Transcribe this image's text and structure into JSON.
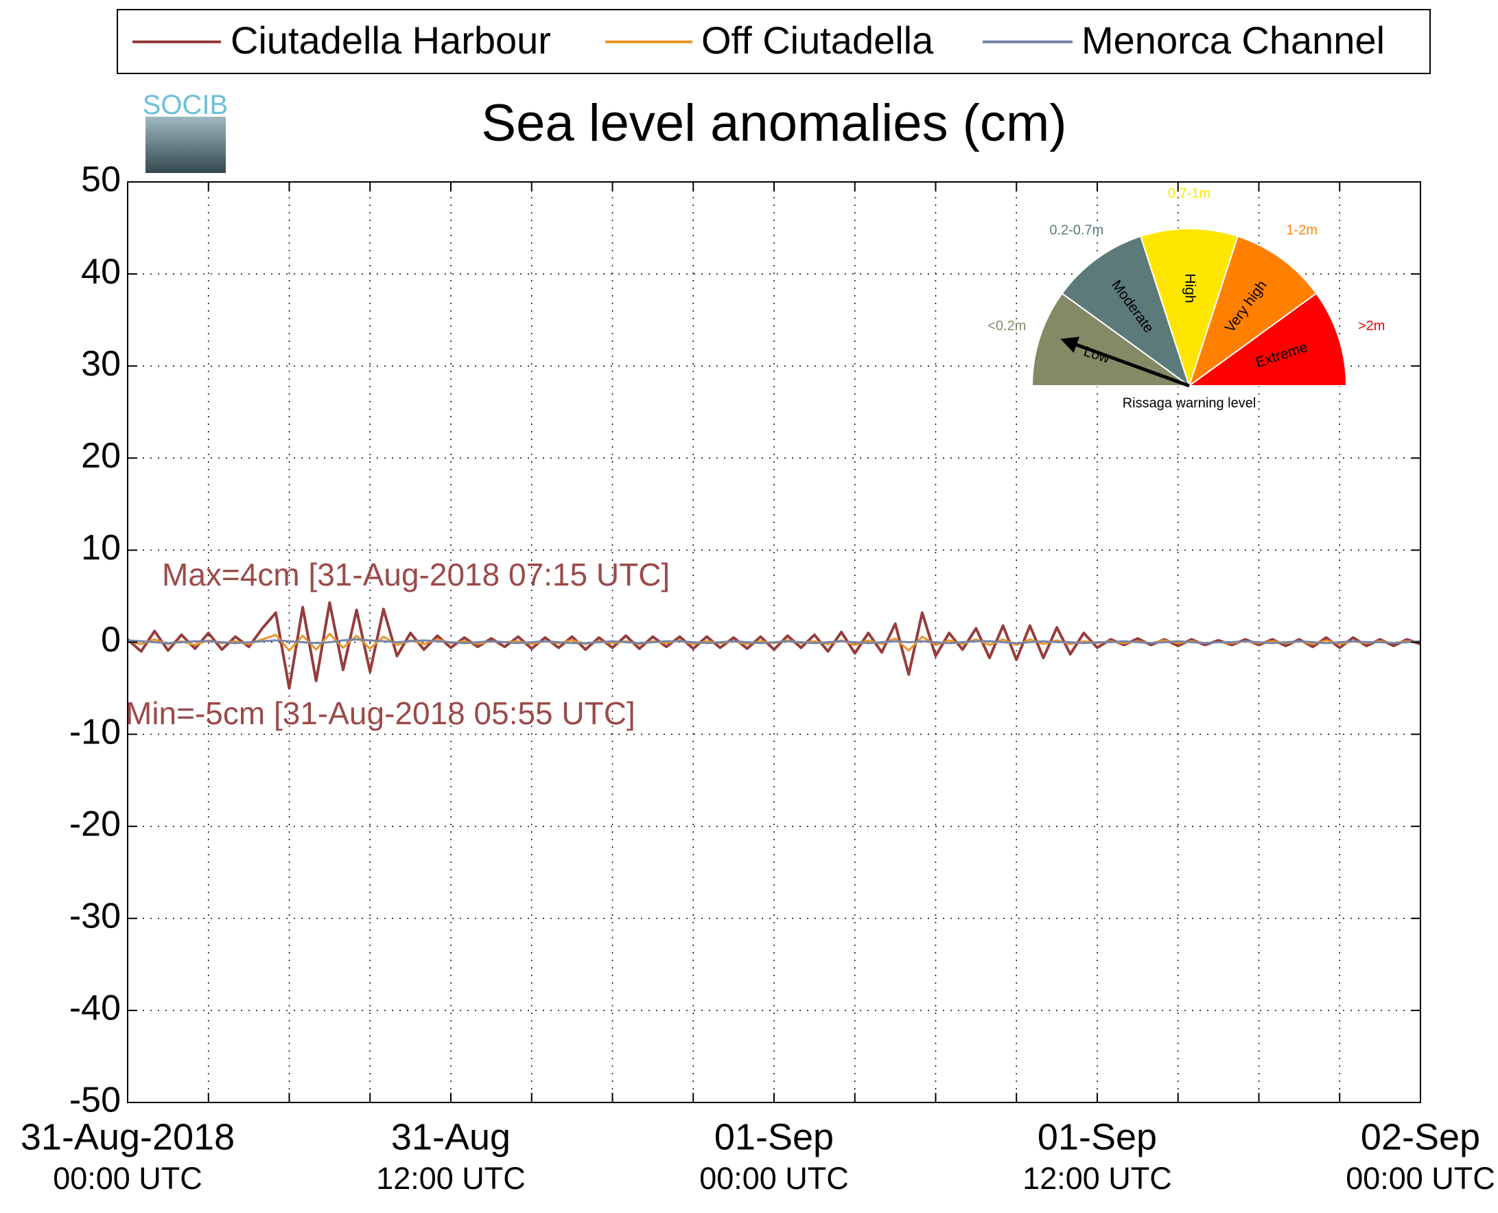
{
  "chart_data": {
    "type": "line",
    "title": "Sea level anomalies (cm)",
    "x": [
      0,
      0.5,
      1,
      1.5,
      2,
      2.5,
      3,
      3.5,
      4,
      4.5,
      5,
      5.5,
      6,
      6.5,
      7,
      7.5,
      8,
      8.5,
      9,
      9.5,
      10,
      10.5,
      11,
      11.5,
      12,
      12.5,
      13,
      13.5,
      14,
      14.5,
      15,
      15.5,
      16,
      16.5,
      17,
      17.5,
      18,
      18.5,
      19,
      19.5,
      20,
      20.5,
      21,
      21.5,
      22,
      22.5,
      23,
      23.5,
      24,
      24.5,
      25,
      25.5,
      26,
      26.5,
      27,
      27.5,
      28,
      28.5,
      29,
      29.5,
      30,
      30.5,
      31,
      31.5,
      32,
      32.5,
      33,
      33.5,
      34,
      34.5,
      35,
      35.5,
      36,
      36.5,
      37,
      37.5,
      38,
      38.5,
      39,
      39.5,
      40,
      40.5,
      41,
      41.5,
      42,
      42.5,
      43,
      43.5,
      44,
      44.5,
      45,
      45.5,
      46,
      46.5,
      47,
      47.5,
      48
    ],
    "series": [
      {
        "name": "Ciutadella Harbour",
        "color": "#963c3c",
        "values": [
          0.3,
          -1.0,
          1.2,
          -0.9,
          0.8,
          -0.7,
          1.0,
          -0.8,
          0.6,
          -0.5,
          1.5,
          3.2,
          -5.0,
          3.8,
          -4.2,
          4.3,
          -3.0,
          3.5,
          -3.2,
          3.6,
          -1.5,
          1.0,
          -0.8,
          0.7,
          -0.6,
          0.5,
          -0.5,
          0.4,
          -0.5,
          0.6,
          -0.7,
          0.5,
          -0.6,
          0.6,
          -0.8,
          0.5,
          -0.6,
          0.7,
          -0.7,
          0.6,
          -0.5,
          0.6,
          -0.7,
          0.6,
          -0.6,
          0.5,
          -0.7,
          0.6,
          -0.8,
          0.7,
          -0.6,
          0.8,
          -1.0,
          1.1,
          -1.2,
          1.0,
          -1.1,
          2.0,
          -3.5,
          3.2,
          -1.5,
          1.0,
          -0.8,
          1.5,
          -1.7,
          1.8,
          -1.9,
          1.8,
          -1.7,
          1.6,
          -1.3,
          1.0,
          -0.6,
          0.3,
          -0.3,
          0.4,
          -0.3,
          0.3,
          -0.4,
          0.3,
          -0.3,
          0.2,
          -0.3,
          0.3,
          -0.3,
          0.3,
          -0.4,
          0.3,
          -0.5,
          0.5,
          -0.6,
          0.5,
          -0.4,
          0.3,
          -0.4,
          0.3,
          -0.2
        ]
      },
      {
        "name": "Off Ciutadella",
        "color": "#e8962a",
        "values": [
          0.1,
          -0.2,
          0.3,
          -0.2,
          0.1,
          -0.3,
          0.2,
          -0.1,
          0.1,
          -0.2,
          0.3,
          0.8,
          -0.9,
          0.7,
          -0.8,
          0.9,
          -0.6,
          0.7,
          -0.7,
          0.6,
          -0.3,
          0.2,
          -0.2,
          0.3,
          -0.1,
          0.1,
          -0.2,
          0.1,
          0.0,
          0.1,
          -0.2,
          0.1,
          -0.1,
          0.2,
          -0.2,
          0.1,
          -0.1,
          0.1,
          -0.2,
          0.1,
          -0.1,
          0.2,
          -0.2,
          0.1,
          -0.1,
          0.1,
          -0.2,
          0.1,
          -0.1,
          0.2,
          -0.1,
          0.1,
          -0.2,
          0.2,
          -0.3,
          0.2,
          -0.2,
          0.4,
          -0.9,
          0.6,
          -0.3,
          0.2,
          -0.2,
          0.3,
          -0.3,
          0.3,
          -0.3,
          0.3,
          -0.2,
          0.2,
          -0.2,
          0.1,
          -0.1,
          0.1,
          -0.1,
          0.1,
          -0.1,
          0.2,
          -0.1,
          0.1,
          -0.1,
          0.0,
          -0.1,
          0.1,
          -0.1,
          0.1,
          -0.1,
          0.1,
          -0.2,
          0.2,
          -0.2,
          0.1,
          -0.1,
          0.1,
          -0.1,
          0.1,
          0.0
        ]
      },
      {
        "name": "Menorca Channel",
        "color": "#7784a8",
        "values": [
          0.2,
          0.1,
          0.0,
          -0.1,
          0.0,
          0.1,
          0.1,
          0.0,
          -0.1,
          0.0,
          0.1,
          0.2,
          0.1,
          0.0,
          -0.1,
          0.0,
          0.2,
          0.3,
          0.2,
          0.1,
          0.0,
          0.1,
          0.2,
          0.1,
          0.0,
          -0.1,
          0.0,
          0.1,
          0.0,
          -0.1,
          0.0,
          0.1,
          0.0,
          -0.1,
          -0.1,
          0.0,
          0.1,
          0.0,
          -0.1,
          0.0,
          0.1,
          0.1,
          0.0,
          -0.1,
          0.0,
          0.1,
          0.0,
          -0.1,
          0.0,
          0.1,
          0.0,
          -0.1,
          0.0,
          0.1,
          0.0,
          -0.1,
          0.0,
          0.1,
          0.0,
          0.1,
          0.0,
          -0.1,
          0.0,
          0.1,
          0.1,
          0.0,
          -0.1,
          0.0,
          0.1,
          0.0,
          0.0,
          -0.1,
          0.0,
          0.0,
          0.1,
          0.0,
          -0.1,
          0.0,
          0.1,
          0.0,
          -0.1,
          0.0,
          0.0,
          0.1,
          0.0,
          -0.1,
          0.0,
          0.1,
          0.0,
          -0.1,
          0.0,
          0.1,
          0.0,
          0.0,
          -0.1,
          0.0,
          0.1
        ]
      }
    ],
    "xlim": [
      0,
      48
    ],
    "xticks": [
      {
        "value": 0,
        "label": [
          "31-Aug-2018",
          "00:00 UTC"
        ]
      },
      {
        "value": 3,
        "label": null
      },
      {
        "value": 6,
        "label": null
      },
      {
        "value": 9,
        "label": null
      },
      {
        "value": 12,
        "label": [
          "31-Aug",
          "12:00 UTC"
        ]
      },
      {
        "value": 15,
        "label": null
      },
      {
        "value": 18,
        "label": null
      },
      {
        "value": 21,
        "label": null
      },
      {
        "value": 24,
        "label": [
          "01-Sep",
          "00:00 UTC"
        ]
      },
      {
        "value": 27,
        "label": null
      },
      {
        "value": 30,
        "label": null
      },
      {
        "value": 33,
        "label": null
      },
      {
        "value": 36,
        "label": [
          "01-Sep",
          "12:00 UTC"
        ]
      },
      {
        "value": 39,
        "label": null
      },
      {
        "value": 42,
        "label": null
      },
      {
        "value": 45,
        "label": null
      },
      {
        "value": 48,
        "label": [
          "02-Sep",
          "00:00 UTC"
        ]
      }
    ],
    "ylim": [
      -50,
      50
    ],
    "yticks": [
      -50,
      -40,
      -30,
      -20,
      -10,
      0,
      10,
      20,
      30,
      40,
      50
    ],
    "grid": true,
    "annotations": [
      "Max=4cm [31-Aug-2018 07:15 UTC]",
      "Min=-5cm [31-Aug-2018 05:55 UTC]"
    ]
  },
  "logo": {
    "text": "SOCIB"
  },
  "gauge": {
    "title": "Rissaga warning level",
    "levels": [
      {
        "name": "Low",
        "range": "<0.2m",
        "color": "#858a66"
      },
      {
        "name": "Moderate",
        "range": "0.2-0.7m",
        "color": "#5c7a7a"
      },
      {
        "name": "High",
        "range": "0.7-1m",
        "color": "#ffe600"
      },
      {
        "name": "Very high",
        "range": "1-2m",
        "color": "#ff8000"
      },
      {
        "name": "Extreme",
        "range": ">2m",
        "color": "#ff0000"
      }
    ]
  }
}
